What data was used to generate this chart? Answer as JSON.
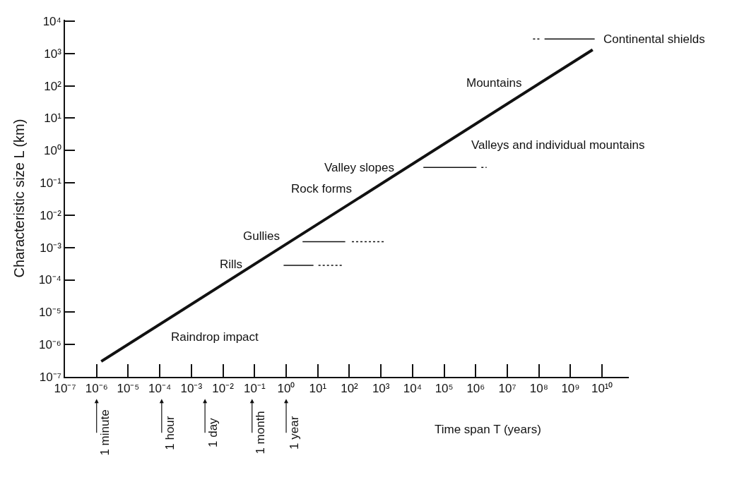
{
  "chart_data": {
    "type": "line",
    "xlabel": "Time span T (years)",
    "ylabel": "Characteristic size L (km)",
    "log": "xy",
    "marker": "none",
    "xlim": [
      1e-07,
      70000000000.0
    ],
    "ylim": [
      1e-07,
      11000.0
    ],
    "xticks": [
      {
        "value": 1e-07,
        "label": "10⁻⁷"
      },
      {
        "value": 1e-06,
        "label": "10⁻⁶"
      },
      {
        "value": 1e-05,
        "label": "10⁻⁵"
      },
      {
        "value": 0.0001,
        "label": "10⁻⁴"
      },
      {
        "value": 0.001,
        "label": "10⁻³"
      },
      {
        "value": 0.01,
        "label": "10⁻²"
      },
      {
        "value": 0.1,
        "label": "10⁻¹"
      },
      {
        "value": 1,
        "label": "10⁰"
      },
      {
        "value": 10,
        "label": "10¹"
      },
      {
        "value": 100,
        "label": "10²"
      },
      {
        "value": 1000,
        "label": "10³"
      },
      {
        "value": 10000.0,
        "label": "10⁴"
      },
      {
        "value": 100000.0,
        "label": "10⁵"
      },
      {
        "value": 1000000.0,
        "label": "10⁶"
      },
      {
        "value": 10000000.0,
        "label": "10⁷"
      },
      {
        "value": 100000000.0,
        "label": "10⁸"
      },
      {
        "value": 1000000000.0,
        "label": "10⁹"
      },
      {
        "value": 10000000000.0,
        "label": "10¹⁰"
      }
    ],
    "yticks": [
      {
        "value": 1e-07,
        "label": "10⁻⁷"
      },
      {
        "value": 1e-06,
        "label": "10⁻⁶"
      },
      {
        "value": 1e-05,
        "label": "10⁻⁵"
      },
      {
        "value": 0.0001,
        "label": "10⁻⁴"
      },
      {
        "value": 0.001,
        "label": "10⁻³"
      },
      {
        "value": 0.01,
        "label": "10⁻²"
      },
      {
        "value": 0.1,
        "label": "10⁻¹"
      },
      {
        "value": 1,
        "label": "10⁰"
      },
      {
        "value": 10,
        "label": "10¹"
      },
      {
        "value": 100,
        "label": "10²"
      },
      {
        "value": 1000,
        "label": "10³"
      },
      {
        "value": 10000.0,
        "label": "10⁴"
      }
    ],
    "series": [
      {
        "color": "#111111",
        "line_style": "solid",
        "x": [
          1.4e-06,
          5000000000.0
        ],
        "values": [
          3e-07,
          1300.0
        ]
      },
      {
        "color": "#111111",
        "line_style": "dashed",
        "x": [
          65000000.0,
          110000000.0
        ],
        "values": [
          2800.0,
          2800.0
        ]
      },
      {
        "color": "#111111",
        "line_style": "solid",
        "x": [
          150000000.0,
          5800000000.0
        ],
        "values": [
          2800.0,
          2800.0
        ]
      },
      {
        "color": "#111111",
        "line_style": "solid",
        "x": [
          22000.0,
          1050000.0
        ],
        "values": [
          0.3,
          0.3
        ]
      },
      {
        "color": "#111111",
        "line_style": "dashed",
        "x": [
          1500000.0,
          2200000.0
        ],
        "values": [
          0.3,
          0.3
        ]
      },
      {
        "color": "#111111",
        "line_style": "solid",
        "x": [
          3.3,
          74
        ],
        "values": [
          0.0015,
          0.0015
        ]
      },
      {
        "color": "#111111",
        "line_style": "dashed",
        "x": [
          120,
          1400
        ],
        "values": [
          0.0015,
          0.0015
        ]
      },
      {
        "color": "#111111",
        "line_style": "solid",
        "x": [
          0.83,
          7.3
        ],
        "values": [
          0.00028,
          0.00028
        ]
      },
      {
        "color": "#111111",
        "line_style": "dashed",
        "x": [
          10.5,
          63
        ],
        "values": [
          0.00028,
          0.00028
        ]
      }
    ],
    "annotations": [
      "Raindrop impact",
      "Rills",
      "Gullies",
      "Rock forms",
      "Valley slopes",
      "Valleys and individual mountains",
      "Mountains",
      {
        "text": "Continental shields",
        "x": 5800000000.0,
        "y": 2800.0
      },
      "1 minute",
      "1 hour",
      "1 day",
      "1 month",
      "1 year"
    ]
  }
}
